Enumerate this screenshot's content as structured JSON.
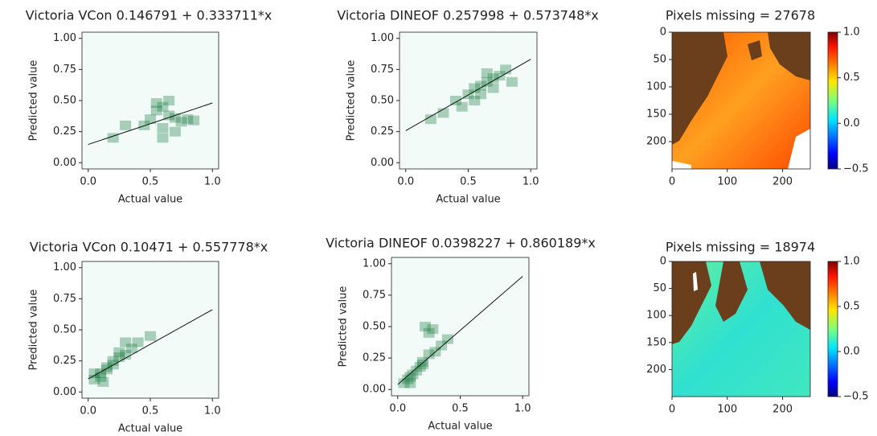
{
  "chart_data": [
    {
      "type": "hexbin",
      "title": "Victoria VCon 0.146791 + 0.333711*x",
      "x_label": "Actual value",
      "y_label": "Predicted value",
      "xlim": [
        -0.05,
        1.05
      ],
      "ylim": [
        -0.05,
        1.05
      ],
      "xticks": [
        {
          "value": 0,
          "label": "0.0"
        },
        0.5,
        {
          "value": 1,
          "label": "1.0"
        }
      ],
      "yticks": [
        {
          "value": 0,
          "label": "0.00"
        },
        0.25,
        {
          "value": 0.5,
          "label": "0.50"
        },
        0.75,
        {
          "value": 1,
          "label": "1.00"
        }
      ],
      "points": {
        "x": [
          0.55,
          0.6,
          0.65,
          0.5,
          0.7,
          0.75,
          0.8,
          0.6,
          0.45,
          0.55,
          0.65,
          0.85,
          0.3,
          0.2,
          0.6,
          0.7
        ],
        "y": [
          0.42,
          0.45,
          0.38,
          0.35,
          0.36,
          0.33,
          0.35,
          0.28,
          0.3,
          0.48,
          0.5,
          0.34,
          0.3,
          0.2,
          0.2,
          0.25
        ]
      },
      "fit": {
        "x": [
          0,
          1
        ],
        "y": [
          0.146791,
          0.480502
        ]
      }
    },
    {
      "type": "hexbin",
      "title": "Victoria DINEOF 0.257998 + 0.573748*x",
      "x_label": "Actual value",
      "y_label": "Predicted value",
      "xlim": [
        -0.05,
        1.05
      ],
      "ylim": [
        -0.05,
        1.05
      ],
      "xticks": [
        {
          "value": 0,
          "label": "0.0"
        },
        0.5,
        {
          "value": 1,
          "label": "1.0"
        }
      ],
      "yticks": [
        {
          "value": 0,
          "label": "0.00"
        },
        0.25,
        {
          "value": 0.5,
          "label": "0.50"
        },
        0.75,
        {
          "value": 1,
          "label": "1.00"
        }
      ],
      "points": {
        "x": [
          0.5,
          0.55,
          0.6,
          0.65,
          0.7,
          0.75,
          0.6,
          0.65,
          0.55,
          0.7,
          0.8,
          0.45,
          0.4,
          0.3,
          0.2,
          0.85
        ],
        "y": [
          0.55,
          0.6,
          0.62,
          0.65,
          0.68,
          0.7,
          0.55,
          0.72,
          0.5,
          0.6,
          0.75,
          0.45,
          0.5,
          0.4,
          0.35,
          0.65
        ]
      },
      "fit": {
        "x": [
          0,
          1
        ],
        "y": [
          0.257998,
          0.831746
        ]
      }
    },
    {
      "type": "image",
      "title": "Pixels missing = 27678",
      "xlim": [
        0,
        250
      ],
      "ylim": [
        0,
        250
      ],
      "y_inverted": true,
      "xticks": [
        0,
        100,
        200
      ],
      "yticks": [
        0,
        50,
        100,
        150,
        200
      ],
      "colorbar": {
        "lim": [
          -0.5,
          1
        ],
        "ticks": [
          {
            "value": -0.5,
            "label": "−0.5"
          },
          {
            "value": 0,
            "label": "0.0"
          },
          0.5,
          {
            "value": 1,
            "label": "1.0"
          }
        ]
      }
    },
    {
      "type": "hexbin",
      "title": "Victoria VCon 0.10471 + 0.557778*x",
      "x_label": "Actual value",
      "y_label": "Predicted value",
      "xlim": [
        -0.05,
        1.05
      ],
      "ylim": [
        -0.05,
        1.05
      ],
      "xticks": [
        {
          "value": 0,
          "label": "0.0"
        },
        0.5,
        {
          "value": 1,
          "label": "1.0"
        }
      ],
      "yticks": [
        {
          "value": 0,
          "label": "0.00"
        },
        0.25,
        {
          "value": 0.5,
          "label": "0.50"
        },
        0.75,
        {
          "value": 1,
          "label": "1.00"
        }
      ],
      "points": {
        "x": [
          0.05,
          0.1,
          0.15,
          0.2,
          0.25,
          0.1,
          0.15,
          0.3,
          0.2,
          0.05,
          0.35,
          0.4,
          0.5,
          0.25,
          0.12,
          0.3
        ],
        "y": [
          0.1,
          0.15,
          0.18,
          0.22,
          0.28,
          0.12,
          0.2,
          0.3,
          0.25,
          0.15,
          0.35,
          0.4,
          0.45,
          0.32,
          0.08,
          0.4
        ]
      },
      "fit": {
        "x": [
          0,
          1
        ],
        "y": [
          0.10471,
          0.662488
        ]
      }
    },
    {
      "type": "hexbin",
      "title": "Victoria DINEOF 0.0398227 + 0.860189*x",
      "x_label": "Actual value",
      "y_label": "Predicted value",
      "xlim": [
        -0.05,
        1.05
      ],
      "ylim": [
        -0.05,
        1.05
      ],
      "xticks": [
        {
          "value": 0,
          "label": "0.0"
        },
        0.5,
        {
          "value": 1,
          "label": "1.0"
        }
      ],
      "yticks": [
        {
          "value": 0,
          "label": "0.00"
        },
        0.25,
        {
          "value": 0.5,
          "label": "0.50"
        },
        0.75,
        {
          "value": 1,
          "label": "1.00"
        }
      ],
      "points": {
        "x": [
          0.05,
          0.08,
          0.1,
          0.12,
          0.15,
          0.2,
          0.25,
          0.22,
          0.28,
          0.3,
          0.25,
          0.2,
          0.35,
          0.4,
          0.18,
          0.1
        ],
        "y": [
          0.05,
          0.08,
          0.1,
          0.12,
          0.15,
          0.2,
          0.45,
          0.5,
          0.48,
          0.3,
          0.28,
          0.22,
          0.35,
          0.4,
          0.18,
          0.05
        ]
      },
      "fit": {
        "x": [
          0,
          1
        ],
        "y": [
          0.0398227,
          0.9000117
        ]
      }
    },
    {
      "type": "image",
      "title": "Pixels missing = 18974",
      "xlim": [
        0,
        250
      ],
      "ylim": [
        0,
        250
      ],
      "y_inverted": true,
      "xticks": [
        0,
        100,
        200
      ],
      "yticks": [
        0,
        50,
        100,
        150,
        200
      ],
      "colorbar": {
        "lim": [
          -0.5,
          1
        ],
        "ticks": [
          {
            "value": -0.5,
            "label": "−0.5"
          },
          {
            "value": 0,
            "label": "0.0"
          },
          0.5,
          {
            "value": 1,
            "label": "1.0"
          }
        ]
      }
    }
  ]
}
